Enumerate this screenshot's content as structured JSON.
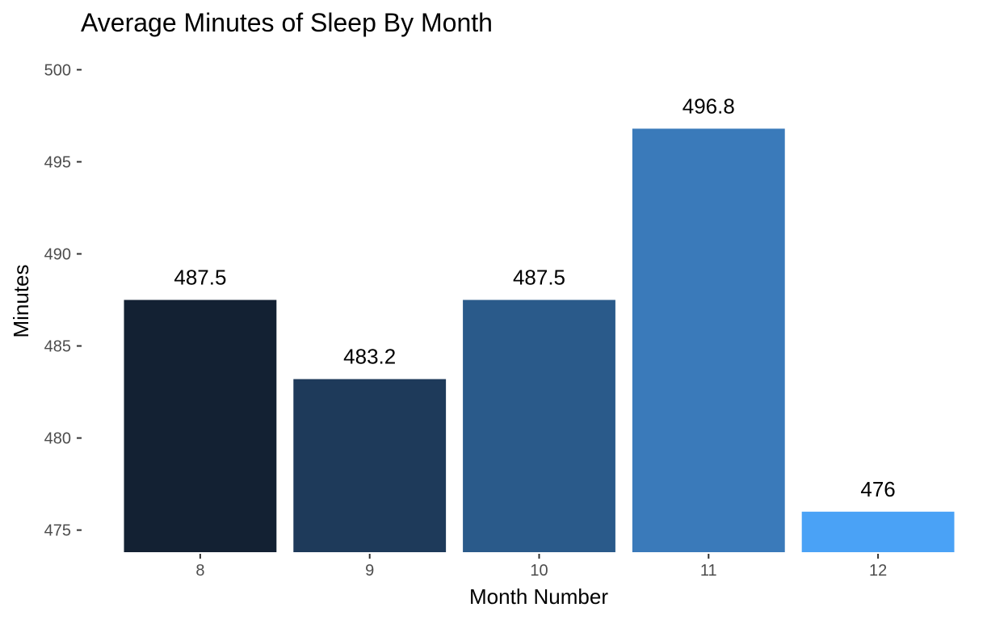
{
  "chart_data": {
    "type": "bar",
    "title": "Average Minutes of Sleep By Month",
    "xlabel": "Month Number",
    "ylabel": "Minutes",
    "categories": [
      "8",
      "9",
      "10",
      "11",
      "12"
    ],
    "values": [
      487.5,
      483.2,
      487.5,
      496.8,
      476
    ],
    "value_labels": [
      "487.5",
      "483.2",
      "487.5",
      "496.8",
      "476"
    ],
    "colors": [
      "#132133",
      "#1e3a5a",
      "#2a5a8a",
      "#3a7aba",
      "#4aa2f6"
    ],
    "ylim": [
      473.8,
      500.5
    ],
    "yticks": [
      475,
      480,
      485,
      490,
      495,
      500
    ],
    "grid": false,
    "legend": "none"
  }
}
